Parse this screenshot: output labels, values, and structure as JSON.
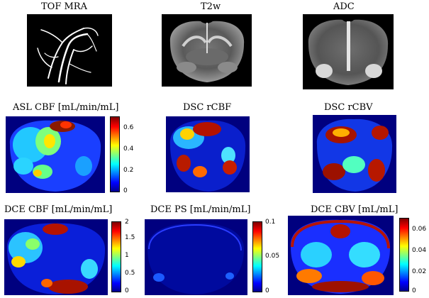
{
  "panels": {
    "tof": {
      "title": "TOF MRA"
    },
    "t2w": {
      "title": "T2w"
    },
    "adc": {
      "title": "ADC"
    },
    "asl": {
      "title": "ASL CBF [mL/min/mL]",
      "ticks": [
        "0.6",
        "0.4",
        "0.2",
        "0"
      ]
    },
    "dsc_rcbf": {
      "title": "DSC rCBF"
    },
    "dsc_rcbv": {
      "title": "DSC rCBV"
    },
    "dce_cbf": {
      "title": "DCE CBF [mL/min/mL]",
      "ticks": [
        "2",
        "1.5",
        "1",
        "0.5",
        "0"
      ]
    },
    "dce_ps": {
      "title": "DCE PS [mL/min/mL]",
      "ticks": [
        "0.1",
        "0.05",
        "0"
      ]
    },
    "dce_cbv": {
      "title": "DCE CBV [mL/mL]",
      "ticks": [
        "0.06",
        "0.04",
        "0.02",
        "0"
      ]
    }
  },
  "colormap": "jet"
}
